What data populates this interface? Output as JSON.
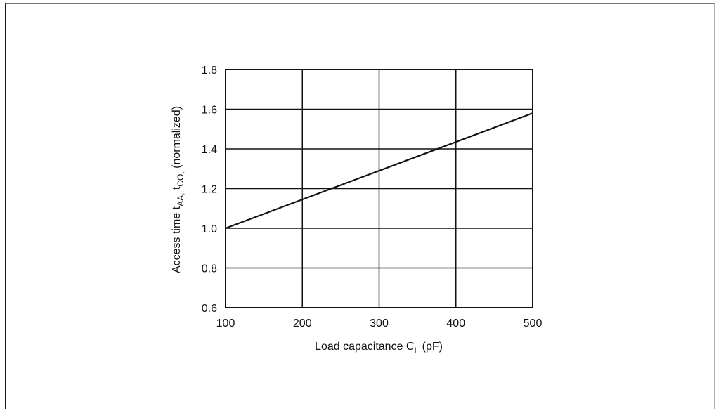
{
  "chart_data": {
    "type": "line",
    "title": "",
    "xlabel": {
      "main": "Load capacitance C",
      "sub": "L",
      "unit": " (pF)"
    },
    "ylabel": {
      "p1": "Access time t",
      "s1": "AA,",
      "p2": " t",
      "s2": "CO,",
      "p3": " (normalized)"
    },
    "xlim": [
      100,
      500
    ],
    "ylim": [
      0.6,
      1.8
    ],
    "x_ticks": [
      100,
      200,
      300,
      400,
      500
    ],
    "y_ticks": [
      0.6,
      0.8,
      1.0,
      1.2,
      1.4,
      1.6,
      1.8
    ],
    "x_tick_labels": [
      "100",
      "200",
      "300",
      "400",
      "500"
    ],
    "y_tick_labels": [
      "0.6",
      "0.8",
      "1.0",
      "1.2",
      "1.4",
      "1.6",
      "1.8"
    ],
    "grid": true,
    "legend": "none",
    "series": [
      {
        "x": [
          100,
          500
        ],
        "y": [
          1.0,
          1.58
        ]
      }
    ]
  }
}
